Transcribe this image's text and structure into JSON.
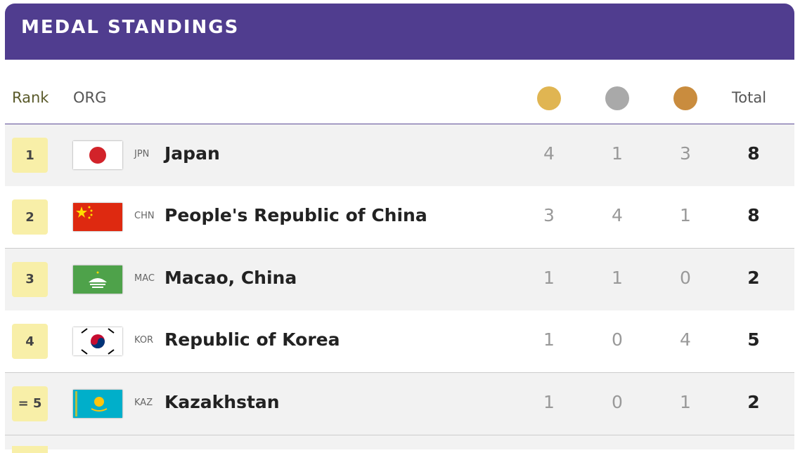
{
  "header": {
    "title": "MEDAL STANDINGS"
  },
  "table": {
    "columns": {
      "rank": "Rank",
      "org": "ORG",
      "total": "Total"
    },
    "rows": [
      {
        "rank": "1",
        "code": "JPN",
        "name": "Japan",
        "gold": 4,
        "silver": 1,
        "bronze": 3,
        "total": 8
      },
      {
        "rank": "2",
        "code": "CHN",
        "name": "People's Republic of China",
        "gold": 3,
        "silver": 4,
        "bronze": 1,
        "total": 8
      },
      {
        "rank": "3",
        "code": "MAC",
        "name": "Macao, China",
        "gold": 1,
        "silver": 1,
        "bronze": 0,
        "total": 2
      },
      {
        "rank": "4",
        "code": "KOR",
        "name": "Republic of Korea",
        "gold": 1,
        "silver": 0,
        "bronze": 4,
        "total": 5
      },
      {
        "rank": "= 5",
        "code": "KAZ",
        "name": "Kazakhstan",
        "gold": 1,
        "silver": 0,
        "bronze": 1,
        "total": 2
      }
    ]
  }
}
